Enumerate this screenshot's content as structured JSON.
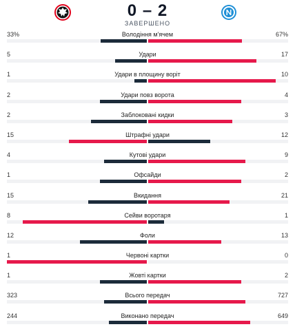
{
  "match": {
    "score": "0 – 2",
    "status": "ЗАВЕРШЕНО",
    "home_logo_icon": "eintracht-frankfurt-eagle-icon",
    "away_logo_icon": "napoli-crest-icon"
  },
  "colors": {
    "leader": "#e6194b",
    "trailer": "#1c2b3a",
    "track": "#f1f2f4"
  },
  "stats": [
    {
      "label": "Володіння м'ячем",
      "home": "33%",
      "away": "67%",
      "home_value": 33,
      "away_value": 67
    },
    {
      "label": "Удари",
      "home": "5",
      "away": "17",
      "home_value": 5,
      "away_value": 17
    },
    {
      "label": "Удари в площину воріт",
      "home": "1",
      "away": "10",
      "home_value": 1,
      "away_value": 10
    },
    {
      "label": "Удари повз ворота",
      "home": "2",
      "away": "4",
      "home_value": 2,
      "away_value": 4
    },
    {
      "label": "Заблоковані кидки",
      "home": "2",
      "away": "3",
      "home_value": 2,
      "away_value": 3
    },
    {
      "label": "Штрафні удари",
      "home": "15",
      "away": "12",
      "home_value": 15,
      "away_value": 12
    },
    {
      "label": "Кутові удари",
      "home": "4",
      "away": "9",
      "home_value": 4,
      "away_value": 9
    },
    {
      "label": "Офсайди",
      "home": "1",
      "away": "2",
      "home_value": 1,
      "away_value": 2
    },
    {
      "label": "Вкидання",
      "home": "15",
      "away": "21",
      "home_value": 15,
      "away_value": 21
    },
    {
      "label": "Сейви воротаря",
      "home": "8",
      "away": "1",
      "home_value": 8,
      "away_value": 1
    },
    {
      "label": "Фоли",
      "home": "12",
      "away": "13",
      "home_value": 12,
      "away_value": 13
    },
    {
      "label": "Червоні картки",
      "home": "1",
      "away": "0",
      "home_value": 1,
      "away_value": 0
    },
    {
      "label": "Жовті картки",
      "home": "1",
      "away": "2",
      "home_value": 1,
      "away_value": 2
    },
    {
      "label": "Всього передач",
      "home": "323",
      "away": "727",
      "home_value": 323,
      "away_value": 727
    },
    {
      "label": "Виконано передач",
      "home": "244",
      "away": "649",
      "home_value": 244,
      "away_value": 649
    }
  ]
}
